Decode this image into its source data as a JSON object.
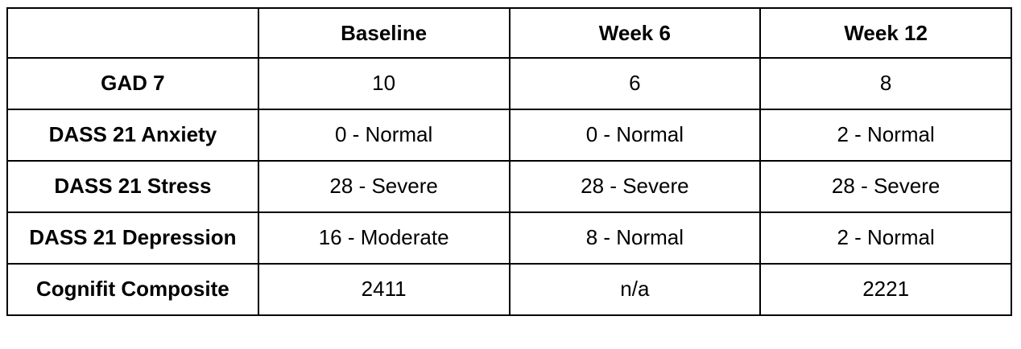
{
  "table": {
    "columns": [
      "Baseline",
      "Week 6",
      "Week 12"
    ],
    "rows": [
      {
        "label": "GAD 7",
        "cells": [
          "10",
          "6",
          "8"
        ]
      },
      {
        "label": "DASS 21 Anxiety",
        "cells": [
          "0 - Normal",
          "0 - Normal",
          "2 - Normal"
        ]
      },
      {
        "label": "DASS 21 Stress",
        "cells": [
          "28 - Severe",
          "28 - Severe",
          "28 - Severe"
        ]
      },
      {
        "label": "DASS 21 Depression",
        "cells": [
          "16 - Moderate",
          "8 - Normal",
          "2 - Normal"
        ]
      },
      {
        "label": "Cognifit Composite",
        "cells": [
          "2411",
          "n/a",
          "2221"
        ]
      }
    ]
  }
}
